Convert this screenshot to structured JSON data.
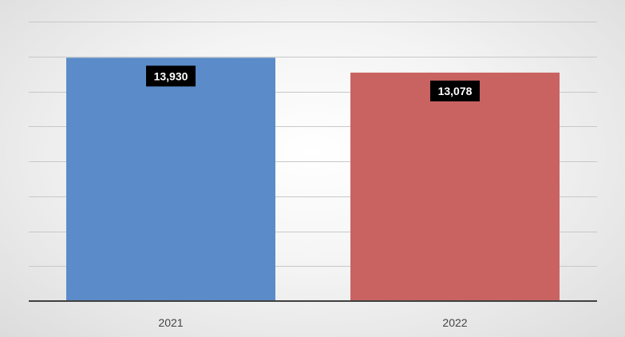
{
  "chart_data": {
    "type": "bar",
    "categories": [
      "2021",
      "2022"
    ],
    "values": [
      13930,
      13078
    ],
    "data_labels": [
      "13,930",
      "13,078"
    ],
    "colors": [
      "#5b8bc8",
      "#c96361"
    ],
    "title": "",
    "xlabel": "",
    "ylabel": "",
    "ylim": [
      0,
      16000
    ],
    "grid": true,
    "legend": "none"
  }
}
